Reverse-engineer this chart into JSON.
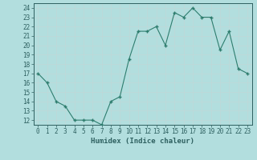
{
  "x": [
    0,
    1,
    2,
    3,
    4,
    5,
    6,
    7,
    8,
    9,
    10,
    11,
    12,
    13,
    14,
    15,
    16,
    17,
    18,
    19,
    20,
    21,
    22,
    23
  ],
  "y": [
    17,
    16,
    14,
    13.5,
    12,
    12,
    12,
    11.5,
    14,
    14.5,
    18.5,
    21.5,
    21.5,
    22,
    20,
    23.5,
    23,
    24,
    23,
    23,
    19.5,
    21.5,
    17.5,
    17
  ],
  "line_color": "#2e7d6e",
  "marker_color": "#2e7d6e",
  "bg_color": "#b2dede",
  "grid_color": "#c8eaea",
  "xlabel": "Humidex (Indice chaleur)",
  "xlim": [
    -0.5,
    23.5
  ],
  "ylim": [
    11.5,
    24.5
  ],
  "yticks": [
    12,
    13,
    14,
    15,
    16,
    17,
    18,
    19,
    20,
    21,
    22,
    23,
    24
  ],
  "xticks": [
    0,
    1,
    2,
    3,
    4,
    5,
    6,
    7,
    8,
    9,
    10,
    11,
    12,
    13,
    14,
    15,
    16,
    17,
    18,
    19,
    20,
    21,
    22,
    23
  ],
  "xtick_labels": [
    "0",
    "1",
    "2",
    "3",
    "4",
    "5",
    "6",
    "7",
    "8",
    "9",
    "10",
    "11",
    "12",
    "13",
    "14",
    "15",
    "16",
    "17",
    "18",
    "19",
    "20",
    "21",
    "22",
    "23"
  ],
  "font_color": "#2e6060",
  "label_fontsize": 6.5,
  "tick_fontsize": 5.5
}
